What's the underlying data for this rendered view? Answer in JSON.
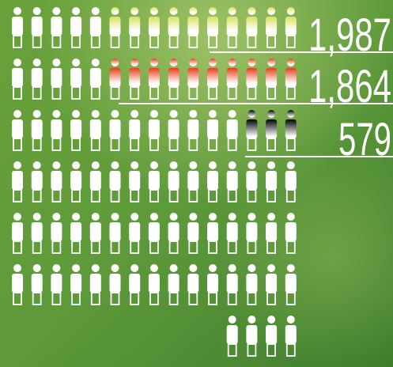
{
  "counters": [
    {
      "label": "1,987"
    },
    {
      "label": "1,864"
    },
    {
      "label": "579"
    }
  ]
}
